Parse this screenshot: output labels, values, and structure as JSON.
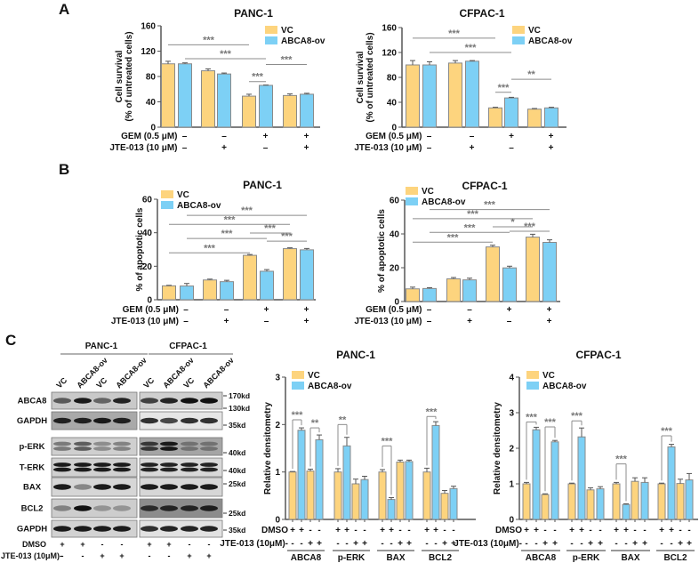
{
  "panel_labels": [
    "A",
    "B",
    "C"
  ],
  "colors": {
    "vc": "#FDD47E",
    "ov": "#7DD0F5",
    "outline": "#8a8a8a",
    "axis": "#555555",
    "sig": "#8c8c8c"
  },
  "chart_data": [
    {
      "id": "A-PANC",
      "type": "bar",
      "title": "PANC-1",
      "ylabel": [
        "Cell survival",
        "(% of untreated cells)"
      ],
      "ylim": [
        0,
        160
      ],
      "yticks": [
        "0",
        "40",
        "80",
        "120",
        "160"
      ],
      "legend": [
        "VC",
        "ABCA8-ov"
      ],
      "legend_placement": "top-right",
      "treatments": [
        {
          "label": "GEM (0.5 μM)",
          "values": [
            "–",
            "–",
            "+",
            "+"
          ]
        },
        {
          "label": "JTE-013 (10 μM)",
          "values": [
            "–",
            "+",
            "–",
            "+"
          ]
        }
      ],
      "series": [
        {
          "name": "VC",
          "values": [
            100,
            89,
            49,
            50
          ],
          "errors": [
            4,
            3,
            3,
            2.5
          ]
        },
        {
          "name": "ABCA8-ov",
          "values": [
            100,
            84,
            66,
            52
          ],
          "errors": [
            1.5,
            1.5,
            0.5,
            1.5
          ]
        }
      ],
      "significance": [
        {
          "bars": [
            0,
            4
          ],
          "label": "***",
          "y": 130
        },
        {
          "bars": [
            1,
            5
          ],
          "label": "***",
          "y": 108
        },
        {
          "bars": [
            5,
            7
          ],
          "label": "***",
          "y": 99
        },
        {
          "bars": [
            4,
            5
          ],
          "label": "***",
          "y": 72
        }
      ]
    },
    {
      "id": "A-CFPAC",
      "type": "bar",
      "title": "CFPAC-1",
      "ylabel": [
        "Cell survival",
        "(% of untreated cells)"
      ],
      "ylim": [
        0,
        160
      ],
      "yticks": [
        "0",
        "40",
        "80",
        "120",
        "160"
      ],
      "legend": [
        "VC",
        "ABCA8-ov"
      ],
      "legend_placement": "top-right",
      "treatments": [
        {
          "label": "GEM (0.5 μM)",
          "values": [
            "–",
            "–",
            "+",
            "+"
          ]
        },
        {
          "label": "JTE-013 (10 μM)",
          "values": [
            "–",
            "+",
            "–",
            "+"
          ]
        }
      ],
      "series": [
        {
          "name": "VC",
          "values": [
            100,
            103,
            31,
            29
          ],
          "errors": [
            7,
            4,
            1,
            1
          ]
        },
        {
          "name": "ABCA8-ov",
          "values": [
            100,
            106,
            47,
            31
          ],
          "errors": [
            5,
            1,
            1,
            1
          ]
        }
      ],
      "significance": [
        {
          "bars": [
            0,
            4
          ],
          "label": "***",
          "y": 143
        },
        {
          "bars": [
            1,
            5
          ],
          "label": "***",
          "y": 120
        },
        {
          "bars": [
            5,
            7
          ],
          "label": "**",
          "y": 77
        },
        {
          "bars": [
            4,
            5
          ],
          "label": "***",
          "y": 56
        }
      ]
    },
    {
      "id": "B-PANC",
      "type": "bar",
      "title": "PANC-1",
      "ylabel": [
        "% of apoptotic cells"
      ],
      "ylim": [
        0,
        60
      ],
      "yticks": [
        "0",
        "20",
        "40",
        "60"
      ],
      "legend": [
        "VC",
        "ABCA8-ov"
      ],
      "legend_placement": "top-left",
      "treatments": [
        {
          "label": "GEM (0.5 μM)",
          "values": [
            "–",
            "–",
            "+",
            "+"
          ]
        },
        {
          "label": "JTE-013 (10 μM)",
          "values": [
            "–",
            "+",
            "–",
            "+"
          ]
        }
      ],
      "series": [
        {
          "name": "VC",
          "values": [
            8.3,
            11.8,
            26.5,
            30.5
          ],
          "errors": [
            0.3,
            0.5,
            0.5,
            0.5
          ]
        },
        {
          "name": "ABCA8-ov",
          "values": [
            8.2,
            10.8,
            17,
            29.8
          ],
          "errors": [
            1.5,
            0.8,
            1,
            0.8
          ]
        }
      ],
      "significance": [
        {
          "bars": [
            1,
            7
          ],
          "label": "***",
          "y": 50.4
        },
        {
          "bars": [
            0,
            6
          ],
          "label": "***",
          "y": 45
        },
        {
          "bars": [
            4,
            6
          ],
          "label": "***",
          "y": 39.8
        },
        {
          "bars": [
            1,
            5
          ],
          "label": "***",
          "y": 36.6
        },
        {
          "bars": [
            5,
            7
          ],
          "label": "***",
          "y": 35
        },
        {
          "bars": [
            0,
            4
          ],
          "label": "***",
          "y": 28
        }
      ]
    },
    {
      "id": "B-CFPAC",
      "type": "bar",
      "title": "CFPAC-1",
      "ylabel": [
        "% of apoptotic cells"
      ],
      "ylim": [
        0,
        60
      ],
      "yticks": [
        "0",
        "20",
        "40",
        "60"
      ],
      "legend": [
        "VC",
        "ABCA8-ov"
      ],
      "legend_placement": "top-left",
      "treatments": [
        {
          "label": "GEM (0.5 μM)",
          "values": [
            "–",
            "–",
            "+",
            "+"
          ]
        },
        {
          "label": "JTE-013 (10 μM)",
          "values": [
            "–",
            "+",
            "–",
            "+"
          ]
        }
      ],
      "series": [
        {
          "name": "VC",
          "values": [
            7.5,
            13.4,
            32.3,
            38.1
          ],
          "errors": [
            1,
            0.8,
            1,
            1.7
          ]
        },
        {
          "name": "ABCA8-ov",
          "values": [
            7.7,
            12.8,
            19.9,
            35
          ],
          "errors": [
            0.5,
            1,
            1,
            1.5
          ]
        }
      ],
      "significance": [
        {
          "bars": [
            1,
            7
          ],
          "label": "***",
          "y": 54.4
        },
        {
          "bars": [
            0,
            6
          ],
          "label": "***",
          "y": 49
        },
        {
          "bars": [
            4,
            6
          ],
          "label": "*",
          "y": 44.2
        },
        {
          "bars": [
            5,
            7
          ],
          "label": "***",
          "y": 41.6
        },
        {
          "bars": [
            1,
            5
          ],
          "label": "***",
          "y": 40.9
        },
        {
          "bars": [
            0,
            4
          ],
          "label": "***",
          "y": 35.1
        }
      ]
    },
    {
      "id": "C-PANC",
      "type": "bar",
      "title": "PANC-1",
      "ylabel": [
        "Relative densitometry"
      ],
      "ylim": [
        0,
        3
      ],
      "yticks": [
        "0",
        "1",
        "2",
        "3"
      ],
      "legend": [
        "VC",
        "ABCA8-ov"
      ],
      "legend_placement": "top-left",
      "bar_series": [
        "VC",
        "ABCA8-ov",
        "VC",
        "ABCA8-ov"
      ],
      "treatments": [
        {
          "label": "DMSO",
          "values": [
            "+",
            "+",
            "-",
            "-"
          ]
        },
        {
          "label": "JTE-013 (10μM)-",
          "values": [
            "-",
            "-",
            "+",
            "+"
          ]
        }
      ],
      "groups": [
        {
          "label": "ABCA8",
          "values": [
            1.0,
            1.88,
            1.02,
            1.68
          ],
          "errors": [
            0.01,
            0.05,
            0.04,
            0.1
          ]
        },
        {
          "label": "p-ERK",
          "values": [
            1.0,
            1.55,
            0.75,
            0.84
          ],
          "errors": [
            0.07,
            0.18,
            0.1,
            0.07
          ]
        },
        {
          "label": "BAX",
          "values": [
            1.0,
            0.42,
            1.21,
            1.22
          ],
          "errors": [
            0.05,
            0.04,
            0.04,
            0.03
          ]
        },
        {
          "label": "BCL2",
          "values": [
            1.0,
            1.98,
            0.55,
            0.65
          ],
          "errors": [
            0.08,
            0.08,
            0.06,
            0.05
          ]
        }
      ],
      "significance": [
        {
          "group": 0,
          "bars": [
            0,
            1
          ],
          "label": "***",
          "y": 2.1
        },
        {
          "group": 0,
          "bars": [
            2,
            3
          ],
          "label": "**",
          "y": 1.93
        },
        {
          "group": 1,
          "bars": [
            0,
            1
          ],
          "label": "**",
          "y": 2.0
        },
        {
          "group": 2,
          "bars": [
            0,
            1
          ],
          "label": "***",
          "y": 1.55
        },
        {
          "group": 3,
          "bars": [
            0,
            1
          ],
          "label": "***",
          "y": 2.17
        }
      ]
    },
    {
      "id": "C-CFPAC",
      "type": "bar",
      "title": "CFPAC-1",
      "ylabel": [
        "Relative densitometry"
      ],
      "ylim": [
        0,
        4
      ],
      "yticks": [
        "0",
        "1",
        "2",
        "3",
        "4"
      ],
      "legend": [
        "VC",
        "ABCA8-ov"
      ],
      "legend_placement": "top-left",
      "bar_series": [
        "VC",
        "ABCA8-ov",
        "VC",
        "ABCA8-ov"
      ],
      "treatments": [
        {
          "label": "DMSO",
          "values": [
            "+",
            "+",
            "-",
            "-"
          ]
        },
        {
          "label": "JTE-013 (10μM)-",
          "values": [
            "-",
            "-",
            "+",
            "+"
          ]
        }
      ],
      "groups": [
        {
          "label": "ABCA8",
          "values": [
            1.0,
            2.52,
            0.7,
            2.18
          ],
          "errors": [
            0.04,
            0.07,
            0.02,
            0.04
          ]
        },
        {
          "label": "p-ERK",
          "values": [
            1.0,
            2.32,
            0.83,
            0.86
          ],
          "errors": [
            0.02,
            0.25,
            0.06,
            0.06
          ]
        },
        {
          "label": "BAX",
          "values": [
            1.0,
            0.42,
            1.07,
            1.04
          ],
          "errors": [
            0.04,
            0.02,
            0.1,
            0.13
          ]
        },
        {
          "label": "BCL2",
          "values": [
            1.0,
            2.04,
            1.01,
            1.11
          ],
          "errors": [
            0.02,
            0.07,
            0.12,
            0.18
          ]
        }
      ],
      "significance": [
        {
          "group": 0,
          "bars": [
            0,
            1
          ],
          "label": "***",
          "y": 2.74
        },
        {
          "group": 0,
          "bars": [
            2,
            3
          ],
          "label": "***",
          "y": 2.6
        },
        {
          "group": 1,
          "bars": [
            0,
            1
          ],
          "label": "***",
          "y": 2.77
        },
        {
          "group": 2,
          "bars": [
            0,
            1
          ],
          "label": "***",
          "y": 1.56
        },
        {
          "group": 3,
          "bars": [
            0,
            1
          ],
          "label": "***",
          "y": 2.35
        }
      ]
    }
  ],
  "blot": {
    "cell_lines": [
      "PANC-1",
      "CFPAC-1"
    ],
    "lanes": [
      "VC",
      "ABCA8-ov",
      "VC",
      "ABCA8-ov"
    ],
    "rows": [
      "ABCA8",
      "GAPDH",
      "p-ERK",
      "T-ERK",
      "BAX",
      "BCL2",
      "GAPDH"
    ],
    "markers": [
      "170kd",
      "130kd",
      "35kd",
      "40kd",
      "40kd",
      "25kd",
      "25kd",
      "35kd"
    ],
    "treatments": [
      {
        "label": "DMSO",
        "values": [
          "+",
          "+",
          "-",
          "-"
        ]
      },
      {
        "label": "JTE-013 (10μM)-",
        "values": [
          "-",
          "-",
          "+",
          "+"
        ]
      }
    ]
  }
}
